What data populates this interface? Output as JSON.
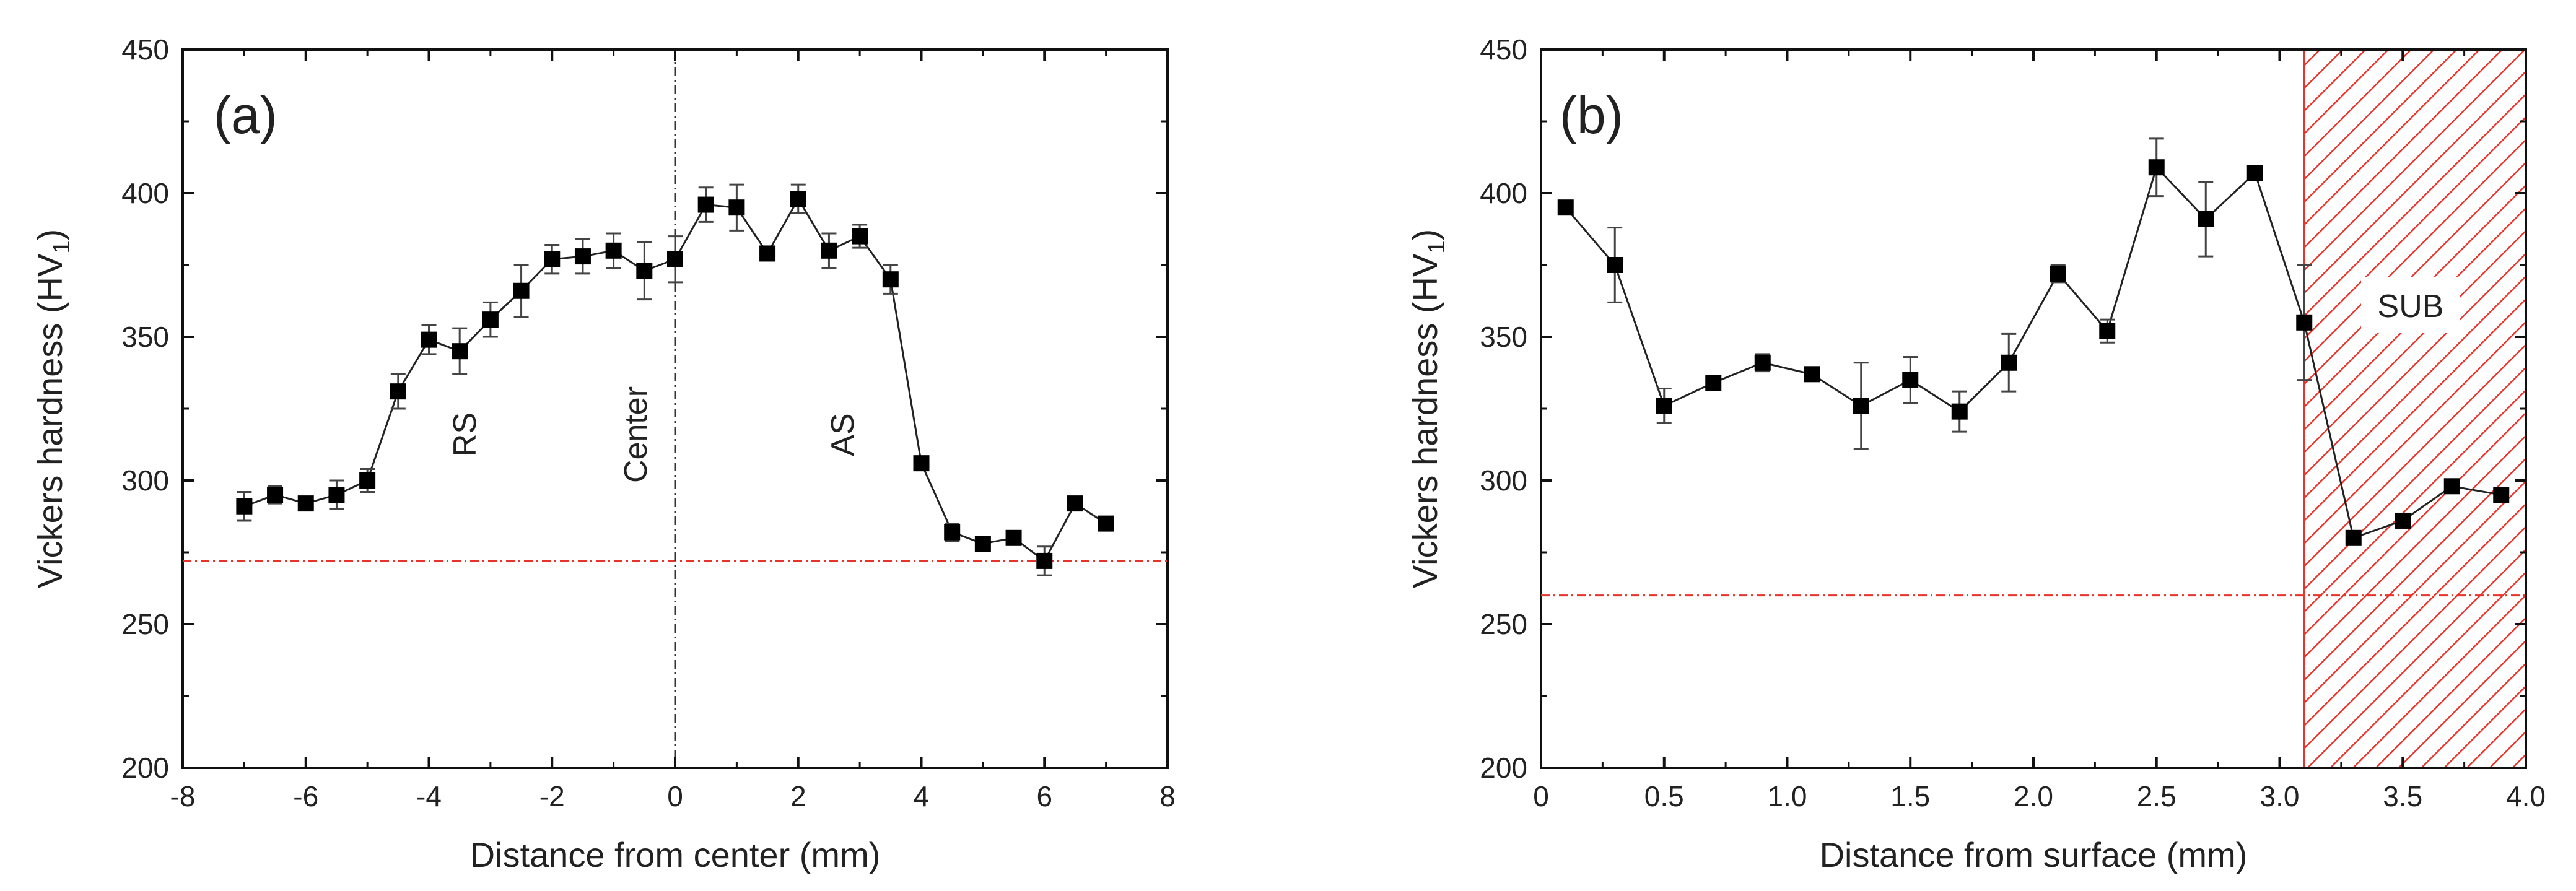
{
  "chart_data": [
    {
      "type": "scatter",
      "panel_label": "(a)",
      "xlabel": "Distance from center (mm)",
      "ylabel": "Vickers hardness (HV",
      "ylabel_subscript": "1",
      "ylabel_close": ")",
      "xlim": [
        -8,
        8
      ],
      "ylim": [
        200,
        450
      ],
      "xticks": [
        -8,
        -6,
        -4,
        -2,
        0,
        2,
        4,
        6,
        8
      ],
      "yticks": [
        200,
        250,
        300,
        350,
        400,
        450
      ],
      "reference_line_y": 272,
      "reference_line_color": "#e8332a",
      "center_line_x": 0,
      "annotations": [
        {
          "text": "RS",
          "x": -3.4,
          "y": 319
        },
        {
          "text": "Center",
          "x": -0.55,
          "y": 319
        },
        {
          "text": "AS",
          "x": 2.8,
          "y": 319
        }
      ],
      "series": [
        {
          "marker_color": "#000000",
          "x": [
            -7,
            -6.5,
            -6,
            -5.5,
            -5,
            -4.5,
            -4,
            -3.5,
            -3,
            -2.5,
            -2,
            -1.5,
            -1,
            -0.5,
            0,
            0.5,
            1,
            1.5,
            2,
            2.5,
            3,
            3.5,
            4,
            4.5,
            5,
            5.5,
            6,
            6.5,
            7
          ],
          "y": [
            291,
            295,
            292,
            295,
            300,
            331,
            349,
            345,
            356,
            366,
            377,
            378,
            380,
            373,
            377,
            396,
            395,
            379,
            398,
            380,
            385,
            370,
            306,
            282,
            278,
            280,
            272,
            292,
            285
          ],
          "err": [
            5,
            3,
            2,
            5,
            4,
            6,
            5,
            8,
            6,
            9,
            5,
            6,
            6,
            10,
            8,
            6,
            8,
            2,
            5,
            6,
            4,
            5,
            2,
            3,
            2,
            2,
            5,
            2,
            2
          ]
        }
      ]
    },
    {
      "type": "scatter",
      "panel_label": "(b)",
      "xlabel": "Distance from surface (mm)",
      "ylabel": "Vickers hardness (HV",
      "ylabel_subscript": "1",
      "ylabel_close": ")",
      "xlim": [
        0,
        4.0
      ],
      "ylim": [
        200,
        450
      ],
      "xticks": [
        "0",
        "0.5",
        "1.0",
        "1.5",
        "2.0",
        "2.5",
        "3.0",
        "3.5",
        "4.0"
      ],
      "yticks": [
        200,
        250,
        300,
        350,
        400,
        450
      ],
      "reference_line_y": 260,
      "reference_line_color": "#e8332a",
      "hatched_region": {
        "x_from": 3.1,
        "x_to": 4.0,
        "label": "SUB",
        "color": "#e8332a"
      },
      "series": [
        {
          "marker_color": "#000000",
          "x": [
            0.1,
            0.3,
            0.5,
            0.7,
            0.9,
            1.1,
            1.3,
            1.5,
            1.7,
            1.9,
            2.1,
            2.3,
            2.5,
            2.7,
            2.9,
            3.1,
            3.3,
            3.5,
            3.7,
            3.9
          ],
          "y": [
            395,
            375,
            326,
            334,
            341,
            337,
            326,
            335,
            324,
            341,
            372,
            352,
            409,
            391,
            407,
            355,
            280,
            286,
            298,
            295
          ],
          "err": [
            1,
            13,
            6,
            1,
            3,
            1,
            15,
            8,
            7,
            10,
            3,
            4,
            10,
            13,
            1,
            20,
            2,
            1,
            1,
            1
          ]
        }
      ]
    }
  ]
}
